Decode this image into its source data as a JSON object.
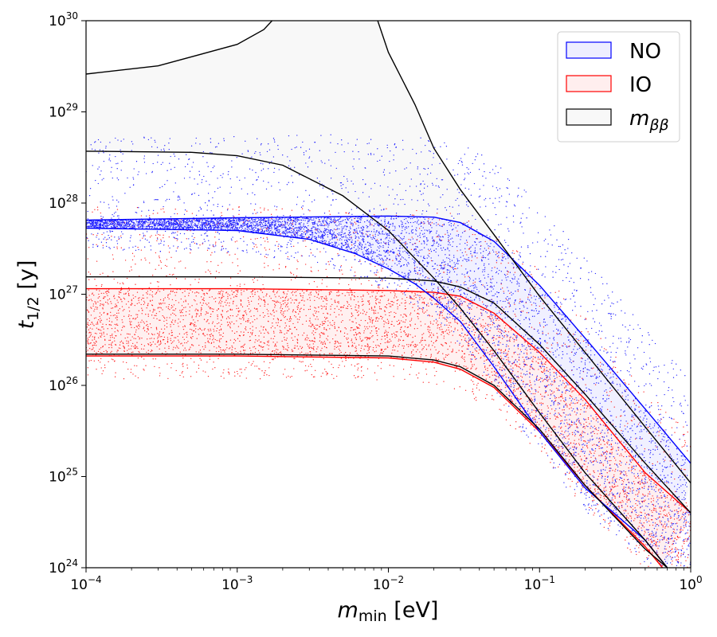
{
  "chart_data": {
    "type": "scatter",
    "x_scale": "log",
    "y_scale": "log",
    "xlim": [
      0.0001,
      1
    ],
    "ylim": [
      1e+24,
      1e+30
    ],
    "xlabel": {
      "main": "m",
      "sub": "min",
      "unit": "[eV]"
    },
    "ylabel": {
      "main": "t",
      "sub": "1/2",
      "unit": "[y]"
    },
    "x_ticks": [
      {
        "value": 0.0001,
        "base": "10",
        "exp": "−4"
      },
      {
        "value": 0.001,
        "base": "10",
        "exp": "−3"
      },
      {
        "value": 0.01,
        "base": "10",
        "exp": "−2"
      },
      {
        "value": 0.1,
        "base": "10",
        "exp": "−1"
      },
      {
        "value": 1,
        "base": "10",
        "exp": "0"
      }
    ],
    "y_ticks": [
      {
        "value": 1e+24,
        "base": "10",
        "exp": "24"
      },
      {
        "value": 1e+25,
        "base": "10",
        "exp": "25"
      },
      {
        "value": 1e+26,
        "base": "10",
        "exp": "26"
      },
      {
        "value": 1e+27,
        "base": "10",
        "exp": "27"
      },
      {
        "value": 1e+28,
        "base": "10",
        "exp": "28"
      },
      {
        "value": 1e+29,
        "base": "10",
        "exp": "29"
      },
      {
        "value": 1e+30,
        "base": "10",
        "exp": "30"
      }
    ],
    "legend": {
      "placement": "top-right",
      "entries": [
        {
          "label": "NO",
          "edge": "#0000ff",
          "fill": "#eeeeff"
        },
        {
          "label": "IO",
          "edge": "#ff0000",
          "fill": "#ffeeee"
        },
        {
          "label_main": "m",
          "label_sub": "ββ",
          "edge": "#000000",
          "fill": "#f8f8f8"
        }
      ]
    },
    "series": [
      {
        "name": "NO",
        "color": "#0000ff",
        "band_lower": [
          [
            0.0001,
            5.3e+27
          ],
          [
            0.001,
            5e+27
          ],
          [
            0.003,
            4e+27
          ],
          [
            0.006,
            2.8e+27
          ],
          [
            0.01,
            1.9e+27
          ],
          [
            0.015,
            1.3e+27
          ],
          [
            0.02,
            9e+26
          ],
          [
            0.03,
            5e+26
          ],
          [
            0.05,
            1.6e+26
          ],
          [
            0.1,
            3.1e+25
          ],
          [
            0.2,
            7.5e+24
          ],
          [
            0.5,
            2e+24
          ],
          [
            0.7,
            1e+24
          ]
        ],
        "band_upper": [
          [
            0.0001,
            6.5e+27
          ],
          [
            0.001,
            6.9e+27
          ],
          [
            0.005,
            7.1e+27
          ],
          [
            0.01,
            7.2e+27
          ],
          [
            0.02,
            7e+27
          ],
          [
            0.03,
            6.1e+27
          ],
          [
            0.05,
            3.8e+27
          ],
          [
            0.1,
            1.25e+27
          ],
          [
            0.2,
            3.3e+26
          ],
          [
            0.3,
            1.5e+26
          ],
          [
            0.5,
            5.5e+25
          ],
          [
            1,
            1.4e+25
          ]
        ]
      },
      {
        "name": "IO",
        "color": "#ff0000",
        "band_lower": [
          [
            0.0001,
            2.1e+26
          ],
          [
            0.001,
            2.1e+26
          ],
          [
            0.01,
            2e+26
          ],
          [
            0.02,
            1.8e+26
          ],
          [
            0.03,
            1.5e+26
          ],
          [
            0.05,
            9.5e+25
          ],
          [
            0.1,
            3.1e+25
          ],
          [
            0.2,
            8e+24
          ],
          [
            0.5,
            1.7e+24
          ],
          [
            0.65,
            1e+24
          ]
        ],
        "band_upper": [
          [
            0.0001,
            1.15e+27
          ],
          [
            0.001,
            1.15e+27
          ],
          [
            0.01,
            1.1e+27
          ],
          [
            0.02,
            1.05e+27
          ],
          [
            0.03,
            9.5e+26
          ],
          [
            0.05,
            6.2e+26
          ],
          [
            0.1,
            2.3e+26
          ],
          [
            0.2,
            7e+25
          ],
          [
            0.5,
            1.1e+25
          ],
          [
            1,
            4e+24
          ]
        ]
      },
      {
        "name": "m_bb_envelope",
        "color": "#000000",
        "curves": [
          [
            [
              0.0001,
              2.2e+26
            ],
            [
              0.001,
              2.2e+26
            ],
            [
              0.01,
              2.1e+26
            ],
            [
              0.02,
              1.9e+26
            ],
            [
              0.03,
              1.6e+26
            ],
            [
              0.05,
              1e+26
            ],
            [
              0.1,
              3.3e+25
            ],
            [
              0.2,
              8e+24
            ],
            [
              0.5,
              1.6e+24
            ],
            [
              0.7,
              1e+24
            ]
          ],
          [
            [
              0.0001,
              1.55e+27
            ],
            [
              0.001,
              1.55e+27
            ],
            [
              0.01,
              1.5e+27
            ],
            [
              0.02,
              1.4e+27
            ],
            [
              0.03,
              1.2e+27
            ],
            [
              0.05,
              8e+26
            ],
            [
              0.1,
              2.8e+26
            ],
            [
              0.2,
              8e+25
            ],
            [
              0.5,
              1.4e+25
            ],
            [
              1,
              4e+24
            ]
          ],
          [
            [
              0.0001,
              3.7e+28
            ],
            [
              0.0005,
              3.6e+28
            ],
            [
              0.001,
              3.3e+28
            ],
            [
              0.002,
              2.6e+28
            ],
            [
              0.005,
              1.2e+28
            ],
            [
              0.01,
              5e+27
            ],
            [
              0.02,
              1.5e+27
            ],
            [
              0.03,
              7e+26
            ],
            [
              0.05,
              2.4e+26
            ],
            [
              0.1,
              5e+25
            ],
            [
              0.2,
              1.1e+25
            ],
            [
              0.5,
              2e+24
            ],
            [
              0.7,
              1e+24
            ]
          ],
          [
            [
              0.0001,
              2.6e+29
            ],
            [
              0.0003,
              3.2e+29
            ],
            [
              0.001,
              5.5e+29
            ],
            [
              0.0015,
              8e+29
            ],
            [
              0.0017,
              1e+30
            ]
          ],
          [
            [
              0.0085,
              1e+30
            ],
            [
              0.01,
              4.5e+29
            ],
            [
              0.015,
              1.2e+29
            ],
            [
              0.02,
              4e+28
            ],
            [
              0.03,
              1.4e+28
            ],
            [
              0.05,
              4.5e+27
            ],
            [
              0.1,
              9.5e+26
            ],
            [
              0.2,
              2.3e+26
            ],
            [
              0.5,
              3.5e+25
            ],
            [
              1,
              8.5e+24
            ]
          ]
        ]
      }
    ]
  }
}
